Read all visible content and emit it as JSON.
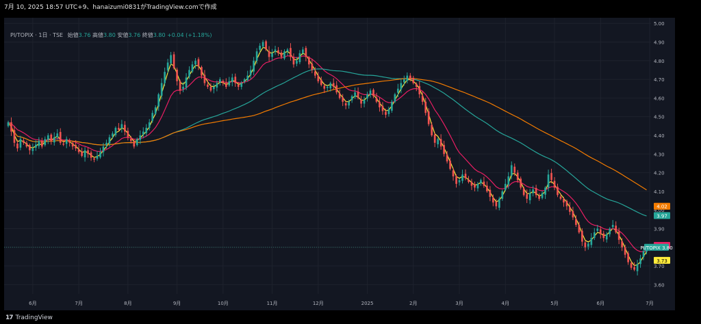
{
  "header": {
    "text": "7月 10, 2025 18:57 UTC+9、hanaizumi0831がTradingView.comで作成"
  },
  "legend": {
    "symbol": "PI/TOPIX · 1日 · TSE",
    "open_label": "始値",
    "open": "3.76",
    "high_label": "高値",
    "high": "3.80",
    "low_label": "安値",
    "low": "3.76",
    "close_label": "終値",
    "close": "3.80",
    "change": "+0.04 (+1.18%)"
  },
  "footer": {
    "brand": "TradingView",
    "logo_icon": "tradingview-logo-icon"
  },
  "colors": {
    "background": "#131722",
    "up": "#26a69a",
    "down": "#ef5350",
    "ma_fast": "#ffeb3b",
    "ma_mid": "#e91e63",
    "ma_slow": "#26a69a",
    "ma_long": "#f57c00",
    "grid": "#1e222d"
  },
  "chart_data": {
    "type": "candlestick",
    "symbol": "PI/TOPIX",
    "x_tick_labels": [
      "6月",
      "7月",
      "8月",
      "9月",
      "10月",
      "11月",
      "12月",
      "2025",
      "2月",
      "3月",
      "4月",
      "5月",
      "6月",
      "7月"
    ],
    "y_tick_labels": [
      "5.00",
      "4.90",
      "4.80",
      "4.70",
      "4.60",
      "4.50",
      "4.40",
      "4.30",
      "4.20",
      "4.10",
      "4.00",
      "3.90",
      "3.80",
      "3.70",
      "3.60"
    ],
    "ylim": [
      3.55,
      5.03
    ],
    "grid": true,
    "price_labels": [
      {
        "text": "4.02",
        "color": "#f57c00",
        "value": 4.02
      },
      {
        "text": "3.97",
        "color": "#26a69a",
        "value": 3.97
      },
      {
        "text": "3.81",
        "color": "#e91e63",
        "value": 3.81
      },
      {
        "text": "PI/TOPIX 3.80",
        "color": "#26a69a",
        "value": 3.8
      },
      {
        "text": "3.73",
        "color": "#ffeb3b",
        "value": 3.73
      }
    ],
    "last_price": 3.8,
    "close_series": [
      4.47,
      4.42,
      4.36,
      4.33,
      4.38,
      4.36,
      4.34,
      4.32,
      4.33,
      4.35,
      4.37,
      4.34,
      4.38,
      4.4,
      4.37,
      4.39,
      4.41,
      4.36,
      4.35,
      4.38,
      4.36,
      4.34,
      4.33,
      4.31,
      4.29,
      4.32,
      4.3,
      4.28,
      4.27,
      4.29,
      4.31,
      4.34,
      4.36,
      4.39,
      4.41,
      4.44,
      4.43,
      4.46,
      4.42,
      4.39,
      4.37,
      4.34,
      4.38,
      4.4,
      4.42,
      4.44,
      4.47,
      4.52,
      4.55,
      4.62,
      4.68,
      4.74,
      4.79,
      4.83,
      4.76,
      4.69,
      4.64,
      4.66,
      4.71,
      4.75,
      4.78,
      4.8,
      4.77,
      4.72,
      4.68,
      4.66,
      4.64,
      4.66,
      4.68,
      4.7,
      4.68,
      4.66,
      4.69,
      4.71,
      4.68,
      4.66,
      4.68,
      4.7,
      4.72,
      4.75,
      4.8,
      4.85,
      4.88,
      4.9,
      4.86,
      4.82,
      4.84,
      4.86,
      4.84,
      4.82,
      4.85,
      4.86,
      4.82,
      4.78,
      4.8,
      4.84,
      4.86,
      4.82,
      4.78,
      4.75,
      4.72,
      4.69,
      4.67,
      4.65,
      4.66,
      4.68,
      4.66,
      4.63,
      4.6,
      4.58,
      4.56,
      4.58,
      4.61,
      4.63,
      4.6,
      4.57,
      4.59,
      4.62,
      4.64,
      4.61,
      4.58,
      4.55,
      4.53,
      4.51,
      4.54,
      4.58,
      4.62,
      4.65,
      4.68,
      4.7,
      4.72,
      4.7,
      4.68,
      4.66,
      4.62,
      4.58,
      4.52,
      4.46,
      4.4,
      4.36,
      4.38,
      4.34,
      4.3,
      4.26,
      4.22,
      4.18,
      4.14,
      4.16,
      4.19,
      4.17,
      4.15,
      4.13,
      4.12,
      4.14,
      4.16,
      4.13,
      4.1,
      4.07,
      4.04,
      4.02,
      4.06,
      4.1,
      4.14,
      4.18,
      4.24,
      4.2,
      4.16,
      4.12,
      4.08,
      4.06,
      4.09,
      4.11,
      4.08,
      4.06,
      4.09,
      4.12,
      4.19,
      4.16,
      4.12,
      4.08,
      4.06,
      4.04,
      4.02,
      3.99,
      3.96,
      3.92,
      3.88,
      3.83,
      3.8,
      3.82,
      3.85,
      3.88,
      3.9,
      3.87,
      3.85,
      3.87,
      3.9,
      3.92,
      3.88,
      3.84,
      3.8,
      3.76,
      3.72,
      3.69,
      3.68,
      3.71,
      3.74,
      3.78,
      3.8
    ],
    "moving_averages": [
      {
        "period": 5,
        "color": "#ffeb3b"
      },
      {
        "period": 25,
        "color": "#e91e63"
      },
      {
        "period": 75,
        "color": "#26a69a"
      },
      {
        "period": 125,
        "color": "#f57c00"
      }
    ]
  }
}
